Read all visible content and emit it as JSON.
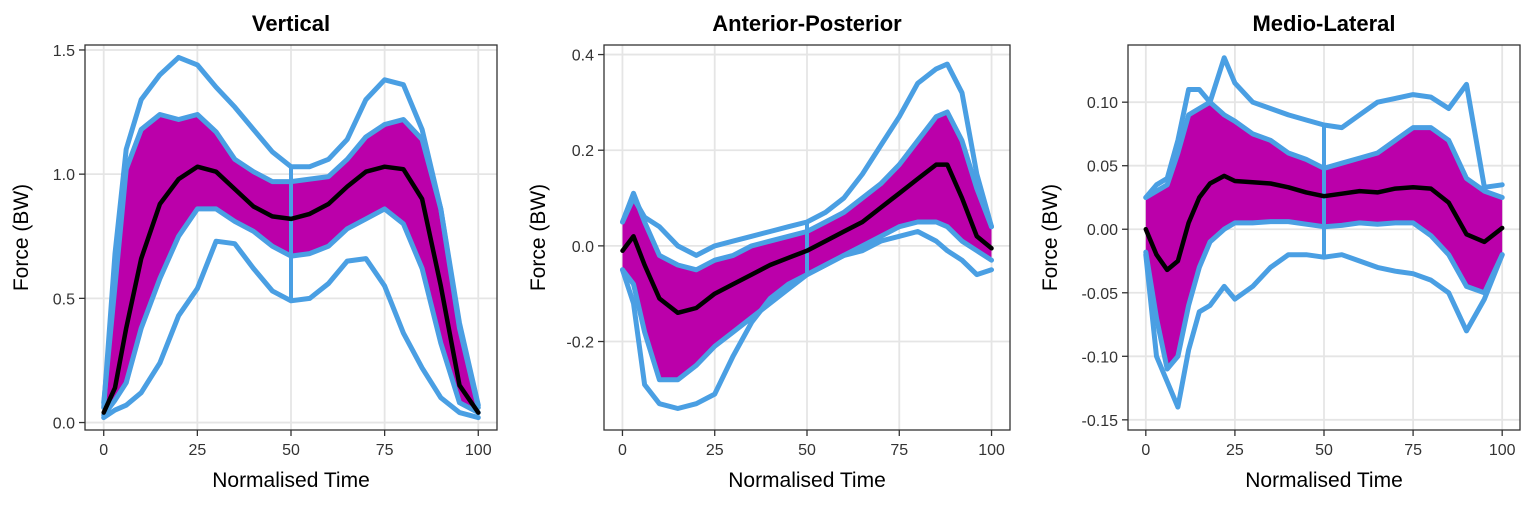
{
  "chart_data": [
    {
      "type": "line",
      "title": "Vertical",
      "xlabel": "Normalised Time",
      "ylabel": "Force (BW)",
      "xlim": [
        -5,
        105
      ],
      "ylim": [
        -0.03,
        1.52
      ],
      "xticks": [
        0,
        25,
        50,
        75,
        100
      ],
      "xtick_labels": [
        "0",
        "25",
        "50",
        "75",
        "100"
      ],
      "yticks": [
        0.0,
        0.5,
        1.0,
        1.5
      ],
      "ytick_labels": [
        "0.0",
        "0.5",
        "1.0",
        "1.5"
      ],
      "grid": true,
      "x": [
        0,
        3,
        6,
        10,
        15,
        20,
        25,
        30,
        35,
        40,
        45,
        50,
        55,
        60,
        65,
        70,
        75,
        80,
        85,
        90,
        95,
        100
      ],
      "series": [
        {
          "role": "mean",
          "values": [
            0.04,
            0.14,
            0.38,
            0.66,
            0.88,
            0.98,
            1.03,
            1.01,
            0.94,
            0.87,
            0.83,
            0.82,
            0.84,
            0.88,
            0.95,
            1.01,
            1.03,
            1.02,
            0.9,
            0.55,
            0.15,
            0.04
          ]
        },
        {
          "role": "band_upper",
          "values": [
            0.08,
            0.55,
            1.02,
            1.18,
            1.24,
            1.22,
            1.24,
            1.17,
            1.06,
            1.01,
            0.97,
            0.97,
            0.98,
            0.99,
            1.06,
            1.15,
            1.2,
            1.22,
            1.14,
            0.86,
            0.38,
            0.06
          ]
        },
        {
          "role": "band_lower",
          "values": [
            0.03,
            0.09,
            0.16,
            0.38,
            0.58,
            0.75,
            0.86,
            0.86,
            0.81,
            0.77,
            0.71,
            0.67,
            0.68,
            0.71,
            0.78,
            0.82,
            0.86,
            0.8,
            0.62,
            0.32,
            0.08,
            0.04
          ]
        },
        {
          "role": "max",
          "values": [
            0.06,
            0.68,
            1.1,
            1.3,
            1.4,
            1.47,
            1.44,
            1.35,
            1.27,
            1.18,
            1.09,
            1.03,
            1.03,
            1.06,
            1.14,
            1.3,
            1.38,
            1.36,
            1.18,
            0.86,
            0.4,
            0.07
          ]
        },
        {
          "role": "min",
          "values": [
            0.02,
            0.05,
            0.07,
            0.12,
            0.24,
            0.43,
            0.54,
            0.73,
            0.72,
            0.62,
            0.53,
            0.49,
            0.5,
            0.56,
            0.65,
            0.66,
            0.55,
            0.36,
            0.22,
            0.1,
            0.04,
            0.02
          ]
        }
      ]
    },
    {
      "type": "line",
      "title": "Anterior-Posterior",
      "xlabel": "Normalised Time",
      "ylabel": "Force (BW)",
      "xlim": [
        -5,
        105
      ],
      "ylim": [
        -0.385,
        0.42
      ],
      "xticks": [
        0,
        25,
        50,
        75,
        100
      ],
      "xtick_labels": [
        "0",
        "25",
        "50",
        "75",
        "100"
      ],
      "yticks": [
        -0.2,
        0.0,
        0.2,
        0.4
      ],
      "ytick_labels": [
        "-0.2",
        "0.0",
        "0.2",
        "0.4"
      ],
      "grid": true,
      "x": [
        0,
        3,
        6,
        10,
        15,
        20,
        25,
        30,
        35,
        40,
        45,
        50,
        55,
        60,
        65,
        70,
        75,
        80,
        85,
        88,
        92,
        96,
        100
      ],
      "series": [
        {
          "role": "mean",
          "values": [
            -0.01,
            0.02,
            -0.04,
            -0.11,
            -0.14,
            -0.13,
            -0.1,
            -0.08,
            -0.06,
            -0.04,
            -0.025,
            -0.01,
            0.01,
            0.03,
            0.05,
            0.08,
            0.11,
            0.14,
            0.17,
            0.17,
            0.1,
            0.02,
            -0.005
          ]
        },
        {
          "role": "band_upper",
          "values": [
            0.05,
            0.11,
            0.05,
            -0.02,
            -0.04,
            -0.05,
            -0.03,
            -0.02,
            0.0,
            0.01,
            0.02,
            0.03,
            0.05,
            0.07,
            0.1,
            0.13,
            0.17,
            0.22,
            0.27,
            0.28,
            0.22,
            0.12,
            0.04
          ]
        },
        {
          "role": "band_lower",
          "values": [
            -0.05,
            -0.08,
            -0.18,
            -0.28,
            -0.28,
            -0.25,
            -0.21,
            -0.18,
            -0.15,
            -0.12,
            -0.09,
            -0.06,
            -0.04,
            -0.02,
            0.0,
            0.02,
            0.04,
            0.05,
            0.05,
            0.04,
            0.01,
            -0.01,
            -0.03
          ]
        },
        {
          "role": "max",
          "values": [
            0.05,
            0.1,
            0.06,
            0.04,
            0.0,
            -0.02,
            0.0,
            0.01,
            0.02,
            0.03,
            0.04,
            0.05,
            0.07,
            0.1,
            0.15,
            0.21,
            0.27,
            0.34,
            0.37,
            0.38,
            0.32,
            0.15,
            0.04
          ]
        },
        {
          "role": "min",
          "values": [
            -0.05,
            -0.12,
            -0.29,
            -0.33,
            -0.34,
            -0.33,
            -0.31,
            -0.23,
            -0.16,
            -0.11,
            -0.08,
            -0.06,
            -0.04,
            -0.02,
            -0.01,
            0.01,
            0.02,
            0.03,
            0.01,
            -0.01,
            -0.03,
            -0.06,
            -0.05
          ]
        }
      ]
    },
    {
      "type": "line",
      "title": "Medio-Lateral",
      "xlabel": "Normalised Time",
      "ylabel": "Force (BW)",
      "xlim": [
        -5,
        105
      ],
      "ylim": [
        -0.158,
        0.145
      ],
      "xticks": [
        0,
        25,
        50,
        75,
        100
      ],
      "xtick_labels": [
        "0",
        "25",
        "50",
        "75",
        "100"
      ],
      "yticks": [
        -0.15,
        -0.1,
        -0.05,
        0.0,
        0.05,
        0.1
      ],
      "ytick_labels": [
        "-0.15",
        "-0.10",
        "-0.05",
        "0.00",
        "0.05",
        "0.10"
      ],
      "grid": true,
      "x": [
        0,
        3,
        6,
        9,
        12,
        15,
        18,
        22,
        25,
        30,
        35,
        40,
        45,
        50,
        55,
        60,
        65,
        70,
        75,
        80,
        85,
        90,
        95,
        100
      ],
      "series": [
        {
          "role": "mean",
          "values": [
            0.0,
            -0.02,
            -0.032,
            -0.025,
            0.005,
            0.025,
            0.036,
            0.042,
            0.038,
            0.037,
            0.036,
            0.033,
            0.029,
            0.026,
            0.028,
            0.03,
            0.029,
            0.032,
            0.033,
            0.032,
            0.021,
            -0.004,
            -0.01,
            0.001
          ]
        },
        {
          "role": "band_upper",
          "values": [
            0.025,
            0.03,
            0.035,
            0.06,
            0.09,
            0.095,
            0.1,
            0.09,
            0.085,
            0.075,
            0.07,
            0.06,
            0.055,
            0.048,
            0.052,
            0.056,
            0.06,
            0.07,
            0.08,
            0.08,
            0.07,
            0.04,
            0.03,
            0.025
          ]
        },
        {
          "role": "band_lower",
          "values": [
            -0.018,
            -0.07,
            -0.11,
            -0.1,
            -0.06,
            -0.03,
            -0.01,
            0.0,
            0.005,
            0.005,
            0.006,
            0.006,
            0.004,
            0.002,
            0.003,
            0.005,
            0.004,
            0.005,
            0.005,
            -0.005,
            -0.02,
            -0.045,
            -0.05,
            -0.02
          ]
        },
        {
          "role": "max",
          "values": [
            0.025,
            0.035,
            0.04,
            0.07,
            0.11,
            0.11,
            0.1,
            0.135,
            0.115,
            0.1,
            0.095,
            0.09,
            0.086,
            0.082,
            0.08,
            0.09,
            0.1,
            0.103,
            0.106,
            0.104,
            0.095,
            0.114,
            0.033,
            0.035
          ]
        },
        {
          "role": "min",
          "values": [
            -0.02,
            -0.1,
            -0.12,
            -0.14,
            -0.095,
            -0.065,
            -0.06,
            -0.045,
            -0.055,
            -0.045,
            -0.03,
            -0.02,
            -0.02,
            -0.022,
            -0.02,
            -0.025,
            -0.03,
            -0.033,
            -0.035,
            -0.04,
            -0.05,
            -0.08,
            -0.055,
            -0.02
          ]
        }
      ]
    }
  ],
  "colors": {
    "band_fill": "#bb00aa",
    "outline": "#4a9fe3",
    "mean_line": "#000000",
    "grid": "#e5e5e5",
    "panel_border": "#333333",
    "tick_label": "#333333"
  }
}
